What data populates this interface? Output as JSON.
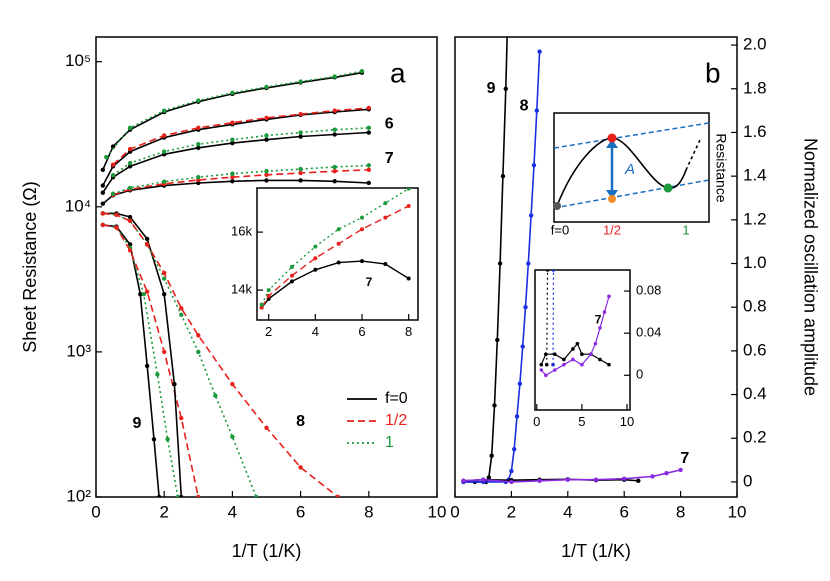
{
  "chart_data": [
    {
      "type": "line",
      "panel_label": "a",
      "xlabel": "1/T (1/K)",
      "ylabel": "Sheet Resistance (Ω)",
      "xlim": [
        0,
        10
      ],
      "xticks": [
        0,
        2,
        4,
        6,
        8,
        10
      ],
      "yscale": "log",
      "ylim": [
        100,
        148000
      ],
      "yticks": [
        {
          "value": 100,
          "label": "10²"
        },
        {
          "value": 1000,
          "label": "10³"
        },
        {
          "value": 10000,
          "label": "10⁴"
        },
        {
          "value": 100000,
          "label": "10⁵"
        }
      ],
      "legend_corner": "lower right",
      "legend": [
        {
          "name": "f=0",
          "color": "#000000",
          "dash": "solid"
        },
        {
          "name": "1/2",
          "color": "#e8201c",
          "dash": "dashed"
        },
        {
          "name": "1",
          "color": "#1a9a3a",
          "dash": "dotted"
        }
      ],
      "series": [
        {
          "color": "#000000",
          "dash": "solid",
          "x": [
            0.2,
            0.5,
            1,
            2,
            3,
            4,
            5,
            6,
            7,
            7.8
          ],
          "values": [
            18000,
            26000,
            34000,
            45000,
            53000,
            60000,
            66000,
            72000,
            78000,
            84000
          ]
        },
        {
          "color": "#1a9a3a",
          "dash": "dotted",
          "x": [
            0.3,
            1,
            2,
            3,
            4,
            5,
            6,
            7,
            7.8
          ],
          "values": [
            22000,
            35000,
            46000,
            54000,
            61000,
            67000,
            73000,
            79000,
            86000
          ]
        },
        {
          "color": "#000000",
          "dash": "solid",
          "x": [
            0.2,
            0.5,
            1,
            2,
            3,
            4,
            5,
            6,
            7,
            8
          ],
          "values": [
            14000,
            19000,
            24000,
            30000,
            34000,
            37000,
            40000,
            43000,
            45000,
            47000
          ]
        },
        {
          "color": "#e8201c",
          "dash": "dashed",
          "x": [
            0.5,
            1,
            2,
            3,
            4,
            5,
            6,
            7,
            8
          ],
          "values": [
            19500,
            25000,
            31000,
            35000,
            38000,
            41000,
            43500,
            46000,
            48000
          ]
        },
        {
          "color": "#000000",
          "dash": "solid",
          "x": [
            0.2,
            0.5,
            1,
            2,
            3,
            4,
            5,
            6,
            7,
            8
          ],
          "values": [
            12500,
            16000,
            19000,
            23000,
            25500,
            27500,
            29000,
            30500,
            31500,
            32500
          ]
        },
        {
          "color": "#1a9a3a",
          "dash": "dotted",
          "x": [
            0.5,
            1,
            2,
            3,
            4,
            5,
            6,
            7,
            8
          ],
          "values": [
            16500,
            20000,
            24000,
            27000,
            29000,
            31000,
            32500,
            34000,
            35000
          ]
        },
        {
          "color": "#000000",
          "dash": "solid",
          "x": [
            0.2,
            0.5,
            1,
            2,
            3,
            4,
            5,
            6,
            7,
            8
          ],
          "values": [
            10500,
            12000,
            13000,
            14000,
            14600,
            15000,
            15200,
            15200,
            15000,
            14600
          ]
        },
        {
          "color": "#e8201c",
          "dash": "dashed",
          "x": [
            0.5,
            1,
            2,
            3,
            4,
            5,
            6,
            7,
            8
          ],
          "values": [
            12100,
            13200,
            14400,
            15300,
            16000,
            16600,
            17100,
            17600,
            18000
          ]
        },
        {
          "color": "#1a9a3a",
          "dash": "dotted",
          "x": [
            0.5,
            1,
            2,
            3,
            4,
            5,
            6,
            7,
            8
          ],
          "values": [
            12300,
            13500,
            14900,
            16000,
            16900,
            17600,
            18200,
            18800,
            19300
          ]
        },
        {
          "color": "#000000",
          "dash": "solid",
          "x": [
            0.2,
            0.6,
            1,
            1.3,
            1.5,
            1.7,
            1.85
          ],
          "values": [
            7500,
            7300,
            5500,
            2500,
            800,
            250,
            100
          ]
        },
        {
          "color": "#1a9a3a",
          "dash": "dotted",
          "x": [
            0.2,
            0.6,
            1,
            1.4,
            1.8,
            2.1,
            2.4
          ],
          "values": [
            7500,
            7200,
            5200,
            2500,
            700,
            250,
            100
          ]
        },
        {
          "color": "#e8201c",
          "dash": "dashed",
          "x": [
            0.2,
            0.6,
            1,
            1.5,
            2,
            2.5,
            3
          ],
          "values": [
            7500,
            7200,
            5000,
            2600,
            1000,
            350,
            100
          ]
        },
        {
          "color": "#000000",
          "dash": "solid",
          "x": [
            0.2,
            0.6,
            1,
            1.5,
            2,
            2.3,
            2.5
          ],
          "values": [
            9000,
            9000,
            8500,
            6000,
            2500,
            600,
            100
          ]
        },
        {
          "color": "#1a9a3a",
          "dash": "dotted",
          "x": [
            0.2,
            0.6,
            1,
            1.5,
            2,
            2.5,
            3,
            3.5,
            4,
            4.7
          ],
          "values": [
            9000,
            8800,
            8000,
            5500,
            3200,
            1800,
            1000,
            500,
            260,
            100
          ]
        },
        {
          "color": "#e8201c",
          "dash": "dashed",
          "x": [
            0.2,
            0.6,
            1,
            1.5,
            2,
            2.5,
            3,
            4,
            5,
            6,
            7.1
          ],
          "values": [
            9000,
            8800,
            8000,
            5500,
            3500,
            2000,
            1300,
            600,
            300,
            160,
            100
          ]
        }
      ],
      "annotations": [
        {
          "text": "9",
          "x": 1.2,
          "y": 320
        },
        {
          "text": "8",
          "x": 6.0,
          "y": 330
        },
        {
          "text": "6",
          "x": 8.6,
          "y": 37000
        },
        {
          "text": "7",
          "x": 8.6,
          "y": 21500
        }
      ]
    },
    {
      "type": "line",
      "xlim": [
        1.5,
        8.4
      ],
      "xticks": [
        2,
        4,
        6,
        8
      ],
      "ylim": [
        12970,
        17520
      ],
      "yticks": [
        {
          "value": 14000,
          "label": "14k"
        },
        {
          "value": 16000,
          "label": "16k"
        }
      ],
      "series": [
        {
          "color": "#000000",
          "dash": "solid",
          "x": [
            1.7,
            2,
            3,
            4,
            5,
            6,
            7,
            8
          ],
          "values": [
            13400,
            13700,
            14300,
            14700,
            14950,
            15000,
            14900,
            14400
          ]
        },
        {
          "color": "#e8201c",
          "dash": "dashed",
          "x": [
            1.7,
            2,
            3,
            4,
            5,
            6,
            7,
            8
          ],
          "values": [
            13400,
            13800,
            14500,
            15100,
            15600,
            16100,
            16500,
            16900
          ]
        },
        {
          "color": "#1a9a3a",
          "dash": "dotted",
          "x": [
            1.7,
            2,
            3,
            4,
            5,
            6,
            7,
            8
          ],
          "values": [
            13500,
            14000,
            14800,
            15500,
            16100,
            16500,
            17000,
            17500
          ]
        }
      ],
      "annotations": [
        {
          "text": "7",
          "x": 6.3,
          "y": 14250
        }
      ]
    },
    {
      "type": "line",
      "panel_label": "b",
      "xlabel": "1/T (1/K)",
      "ylabel": "Normalized oscillation amplitude",
      "xlim": [
        0,
        10
      ],
      "xticks": [
        0,
        2,
        4,
        6,
        8,
        10
      ],
      "ylim": [
        -0.069,
        2.037
      ],
      "yticks": [
        0,
        0.2,
        0.4,
        0.6,
        0.8,
        {
          "value": 1,
          "label": "1.0"
        },
        1.2,
        1.4,
        1.6,
        1.8,
        {
          "value": 2,
          "label": "2.0"
        }
      ],
      "series": [
        {
          "color": "#000000",
          "dash": "solid",
          "x": [
            0.3,
            0.7,
            1.1,
            1.2,
            1.3,
            1.4,
            1.5,
            1.6,
            1.7,
            1.8,
            1.85
          ],
          "values": [
            0,
            0,
            0,
            0.02,
            0.12,
            0.35,
            0.65,
            1.0,
            1.4,
            1.8,
            2.05
          ]
        },
        {
          "color": "#1a2fe0",
          "dash": "solid",
          "x": [
            0.3,
            1,
            1.8,
            1.9,
            2.0,
            2.1,
            2.2,
            2.3,
            2.4,
            2.5,
            2.6,
            2.7,
            2.8,
            2.9,
            3.0
          ],
          "values": [
            0,
            0,
            0,
            0.01,
            0.05,
            0.15,
            0.3,
            0.45,
            0.62,
            0.8,
            1.0,
            1.22,
            1.45,
            1.7,
            1.97
          ]
        },
        {
          "color": "#000000",
          "dash": "solid",
          "x": [
            0.3,
            1,
            2,
            3,
            4,
            5,
            6,
            6.5
          ],
          "values": [
            0.005,
            0.01,
            0.008,
            0.01,
            0.012,
            0.008,
            0.01,
            0.005
          ]
        },
        {
          "color": "#8a2be2",
          "dash": "solid",
          "x": [
            0.3,
            1,
            2,
            3,
            4,
            5,
            6,
            7,
            7.5,
            8
          ],
          "values": [
            0.005,
            0.01,
            0,
            0.005,
            0.01,
            0.01,
            0.015,
            0.025,
            0.04,
            0.055
          ]
        }
      ],
      "annotations": [
        {
          "text": "9",
          "x": 1.28,
          "y": 1.8
        },
        {
          "text": "8",
          "x": 2.45,
          "y": 1.72
        },
        {
          "text": "7",
          "x": 8.15,
          "y": 0.105
        }
      ]
    },
    {
      "type": "line",
      "xlim": [
        -0.2,
        10.33
      ],
      "xticks": [
        0,
        5,
        10
      ],
      "ylim": [
        -0.033,
        0.1
      ],
      "yticks": [
        0,
        0.04,
        0.08
      ],
      "series": [
        {
          "color": "#000000",
          "dash": "dotted",
          "x": [
            1.1,
            1.2
          ],
          "values": [
            0.01,
            0.1
          ]
        },
        {
          "color": "#1a2fe0",
          "dash": "dotted",
          "x": [
            1.8,
            1.85
          ],
          "values": [
            0.01,
            0.1
          ]
        },
        {
          "color": "#000000",
          "dash": "solid",
          "x": [
            0.5,
            1,
            2,
            3,
            4,
            4.5,
            5,
            6,
            7,
            8
          ],
          "values": [
            0.01,
            0.02,
            0.02,
            0.015,
            0.025,
            0.03,
            0.02,
            0.02,
            0.015,
            0.01
          ]
        },
        {
          "color": "#8a2be2",
          "dash": "solid",
          "x": [
            0.5,
            1,
            2,
            3,
            4,
            5,
            6,
            6.5,
            7,
            7.5,
            8
          ],
          "values": [
            0.005,
            0,
            0.005,
            0.01,
            0.015,
            0.01,
            0.02,
            0.03,
            0.045,
            0.06,
            0.075
          ]
        }
      ],
      "annotations": [
        {
          "text": "7",
          "x": 6.8,
          "y": 0.052
        }
      ]
    }
  ],
  "schematic": {
    "x_labels": [
      "f=0",
      "1/2",
      "1"
    ],
    "y_label": "Resistance",
    "annotation": "A"
  }
}
